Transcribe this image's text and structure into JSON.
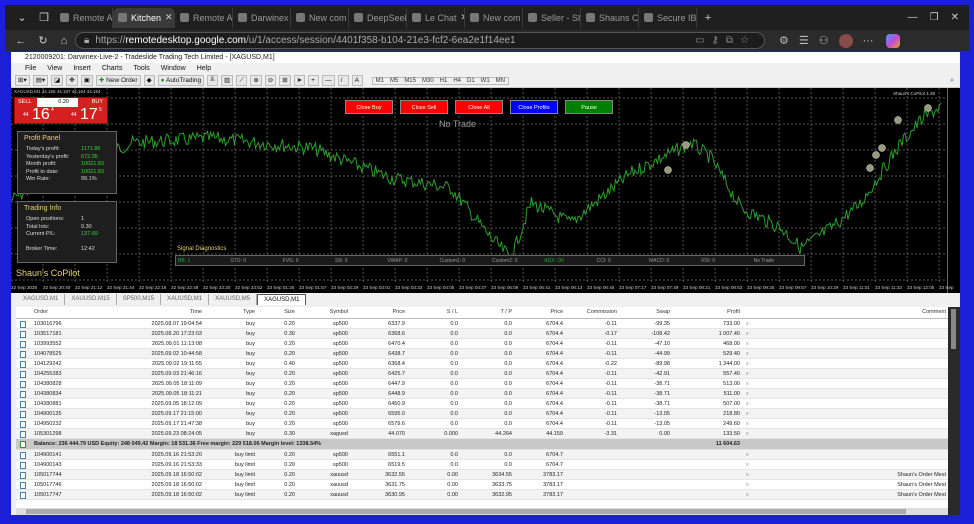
{
  "browser": {
    "tabs": [
      {
        "label": "Remote A",
        "active": false
      },
      {
        "label": "Kitchen",
        "active": true
      },
      {
        "label": "Remote A",
        "active": false
      },
      {
        "label": "Darwinex",
        "active": false
      },
      {
        "label": "New com",
        "active": false
      },
      {
        "label": "DeepSeek",
        "active": false
      },
      {
        "label": "Le Chat",
        "active": false
      },
      {
        "label": "New com",
        "active": false
      },
      {
        "label": "Seller - Sh",
        "active": false
      },
      {
        "label": "Shauns C",
        "active": false
      },
      {
        "label": "Secure IB",
        "active": false
      }
    ],
    "url_prefix": "https://",
    "url_host": "remotedesktop.google.com",
    "url_path": "/u/1/access/session/4401f358-b104-21e3-fcf2-6ea2e1f14ee1"
  },
  "mt4": {
    "title": "2120009201: Darwinex-Live-2 - Tradeslide Trading Tech Limited - [XAGUSD,M1]",
    "menu": [
      "File",
      "View",
      "Insert",
      "Charts",
      "Tools",
      "Window",
      "Help"
    ],
    "toolbar": {
      "new_order": "New Order",
      "autotrading": "AutoTrading"
    },
    "timeframes": [
      "M1",
      "M5",
      "M15",
      "M30",
      "H1",
      "H4",
      "D1",
      "W1",
      "MN"
    ],
    "chart": {
      "symbol_info": "XAGUSD,M1  44.165 44.187 44.164 44.164",
      "one_click": {
        "sell": "SELL",
        "buy": "BUY",
        "lot": "0.20",
        "sell_big": "16",
        "sell_sup": "4",
        "sell_pre": "44",
        "buy_big": "17",
        "buy_sup": "5",
        "buy_pre": "44"
      },
      "buttons": [
        {
          "label": "Close Buy",
          "color": "#ff0000"
        },
        {
          "label": "Close Sell",
          "color": "#ff0000"
        },
        {
          "label": "Close All",
          "color": "#ff0000"
        },
        {
          "label": "Close Profits",
          "color": "#0000ff"
        },
        {
          "label": "Pause",
          "color": "#008000"
        }
      ],
      "status": "No Trade",
      "ea_label": "Shaun's CoPilot 1.38",
      "brand": "Shaun's CoPilot",
      "profit_panel": {
        "title": "Profit Panel",
        "rows": [
          {
            "label": "Today's profit:",
            "value": "1171.86"
          },
          {
            "label": "Yesterday's profit:",
            "value": "672.95"
          },
          {
            "label": "Month profit:",
            "value": "10021.83"
          },
          {
            "label": "Profit to date:",
            "value": "10021.83"
          },
          {
            "label": "Win Rate:",
            "value": "99.1%"
          }
        ]
      },
      "trading_info": {
        "title": "Trading Info",
        "rows": [
          {
            "label": "Open positions:",
            "value": "1"
          },
          {
            "label": "Total lots:",
            "value": "0.30"
          },
          {
            "label": "Current P/L:",
            "value": "137.69"
          }
        ],
        "broker_label": "Broker Time:",
        "broker_time": "12:42"
      },
      "signals": {
        "title": "Signal Diagnostics",
        "items": [
          {
            "label": "BB: 1",
            "active": true
          },
          {
            "label": "STO: 0"
          },
          {
            "label": "FVG: 0"
          },
          {
            "label": "SR: 0"
          },
          {
            "label": "VWAP: 0"
          },
          {
            "label": "Custom1: 0"
          },
          {
            "label": "Custom2: 0"
          },
          {
            "label": "ADX: OK",
            "active": true
          },
          {
            "label": "CCI: 0"
          },
          {
            "label": "MACD: 0"
          },
          {
            "label": "RSI: 0"
          },
          {
            "label": "No Trade"
          }
        ]
      },
      "time_labels": [
        "22 Sep 2025",
        "22 Sep 20:40",
        "22 Sep 21:12",
        "22 Sep 21:44",
        "22 Sep 22:16",
        "22 Sep 22:48",
        "22 Sep 23:20",
        "22 Sep 23:52",
        "23 Sep 01:25",
        "23 Sep 01:57",
        "23 Sep 02:29",
        "23 Sep 03:01",
        "23 Sep 03:33",
        "23 Sep 04:05",
        "23 Sep 04:37",
        "23 Sep 05:09",
        "23 Sep 05:41",
        "23 Sep 06:13",
        "23 Sep 06:45",
        "23 Sep 07:17",
        "23 Sep 07:49",
        "23 Sep 08:21",
        "23 Sep 08:53",
        "23 Sep 09:25",
        "23 Sep 09:57",
        "23 Sep 10:29",
        "23 Sep 11:01",
        "23 Sep 11:33",
        "23 Sep 12:05",
        "23 Sep"
      ],
      "line_color": "#2e9e2e"
    },
    "chart_tabs": [
      {
        "label": "XAGUSD,M1"
      },
      {
        "label": "XAUUSD,M15"
      },
      {
        "label": "SP500,M15"
      },
      {
        "label": "XAUUSD,M1"
      },
      {
        "label": "XAUUSD,M5"
      },
      {
        "label": "XAGUSD,M1",
        "active": true
      }
    ],
    "terminal": {
      "columns": [
        "Order",
        "Time",
        "Type",
        "Size",
        "Symbol",
        "Price",
        "S / L",
        "T / P",
        "Price",
        "Commission",
        "Swap",
        "Profit",
        "Comment"
      ],
      "rows": [
        [
          "103016796",
          "2025.08.07 19:04:54",
          "buy",
          "0.20",
          "sp500",
          "6337.9",
          "0.0",
          "0.0",
          "6704.4",
          "-0.11",
          "-99.35",
          "733.00",
          "x",
          ""
        ],
        [
          "103517181",
          "2025.08.20 17:23:03",
          "buy",
          "0.30",
          "sp500",
          "6368.6",
          "0.0",
          "0.0",
          "6704.4",
          "-0.17",
          "-108.42",
          "1 007.40",
          "x",
          ""
        ],
        [
          "103993552",
          "2025.09.01 11:13:08",
          "buy",
          "0.20",
          "sp500",
          "6470.4",
          "0.0",
          "0.0",
          "6704.4",
          "-0.11",
          "-47.10",
          "468.00",
          "x",
          ""
        ],
        [
          "104078525",
          "2025.09.02 10:44:58",
          "buy",
          "0.20",
          "sp500",
          "6438.7",
          "0.0",
          "0.0",
          "6704.4",
          "-0.11",
          "-44.99",
          "529.40",
          "x",
          ""
        ],
        [
          "104129242",
          "2025.09.02 19:11:55",
          "buy",
          "0.40",
          "sp500",
          "6368.4",
          "0.0",
          "0.0",
          "6704.4",
          "-0.22",
          "-89.98",
          "1 344.00",
          "x",
          ""
        ],
        [
          "104255283",
          "2025.09.03 21:46:16",
          "buy",
          "0.20",
          "sp500",
          "6425.7",
          "0.0",
          "0.0",
          "6704.4",
          "-0.11",
          "-42.91",
          "557.40",
          "x",
          ""
        ],
        [
          "104380828",
          "2025.09.05 18:11:09",
          "buy",
          "0.20",
          "sp500",
          "6447.9",
          "0.0",
          "0.0",
          "6704.4",
          "-0.11",
          "-38.71",
          "513.00",
          "x",
          ""
        ],
        [
          "104380834",
          "2025.09.05 18:11:21",
          "buy",
          "0.20",
          "sp500",
          "6448.9",
          "0.0",
          "0.0",
          "6704.4",
          "-0.11",
          "-38.71",
          "511.00",
          "x",
          ""
        ],
        [
          "104380881",
          "2025.09.05 18:12:09",
          "buy",
          "0.20",
          "sp500",
          "6450.9",
          "0.0",
          "0.0",
          "6704.4",
          "-0.11",
          "-38.71",
          "507.00",
          "x",
          ""
        ],
        [
          "104900135",
          "2025.09.17 21:15:00",
          "buy",
          "0.20",
          "sp500",
          "6595.0",
          "0.0",
          "0.0",
          "6704.4",
          "-0.11",
          "-13.05",
          "218.80",
          "x",
          ""
        ],
        [
          "104950232",
          "2025.09.17 21:47:38",
          "buy",
          "0.20",
          "sp500",
          "6579.6",
          "0.0",
          "0.0",
          "6704.4",
          "-0.11",
          "-13.05",
          "249.60",
          "x",
          ""
        ],
        [
          "105301298",
          "2025.09.23 08:24:05",
          "buy",
          "0.30",
          "xagusd",
          "44.070",
          "0.000",
          "44.264",
          "44.159",
          "-3.31",
          "0.00",
          "133.50",
          "x",
          ""
        ]
      ],
      "balance_line": "Balance: 236 444.79 USD  Equity: 248 049.42  Margin: 18 531.36  Free margin: 229 518.06  Margin level: 1338.54%",
      "balance_total": "11 604.63",
      "pending": [
        [
          "104900141",
          "2025.09.16 21:53:20",
          "buy limit",
          "0.20",
          "sp500",
          "6551.1",
          "0.0",
          "0.0",
          "6704.7",
          "",
          "",
          "",
          "x",
          ""
        ],
        [
          "104900143",
          "2025.09.16 21:53:33",
          "buy limit",
          "0.20",
          "sp500",
          "6519.5",
          "0.0",
          "0.0",
          "6704.7",
          "",
          "",
          "",
          "x",
          ""
        ],
        [
          "105017744",
          "2025.09.18 16:50:02",
          "buy limit",
          "0.20",
          "xauusd",
          "3632.55",
          "0.00",
          "3634.55",
          "3783.17",
          "",
          "",
          "",
          "x",
          "Shaun's Order Mest"
        ],
        [
          "105017746",
          "2025.09.18 16:50:02",
          "buy limit",
          "0.20",
          "xauusd",
          "3631.75",
          "0.00",
          "3633.75",
          "3783.17",
          "",
          "",
          "",
          "x",
          "Shaun's Order Mest"
        ],
        [
          "105017747",
          "2025.09.18 16:50:02",
          "buy limit",
          "0.20",
          "xauusd",
          "3630.95",
          "0.00",
          "3632.95",
          "3783.17",
          "",
          "",
          "",
          "x",
          "Shaun's Order Mest"
        ]
      ]
    }
  }
}
